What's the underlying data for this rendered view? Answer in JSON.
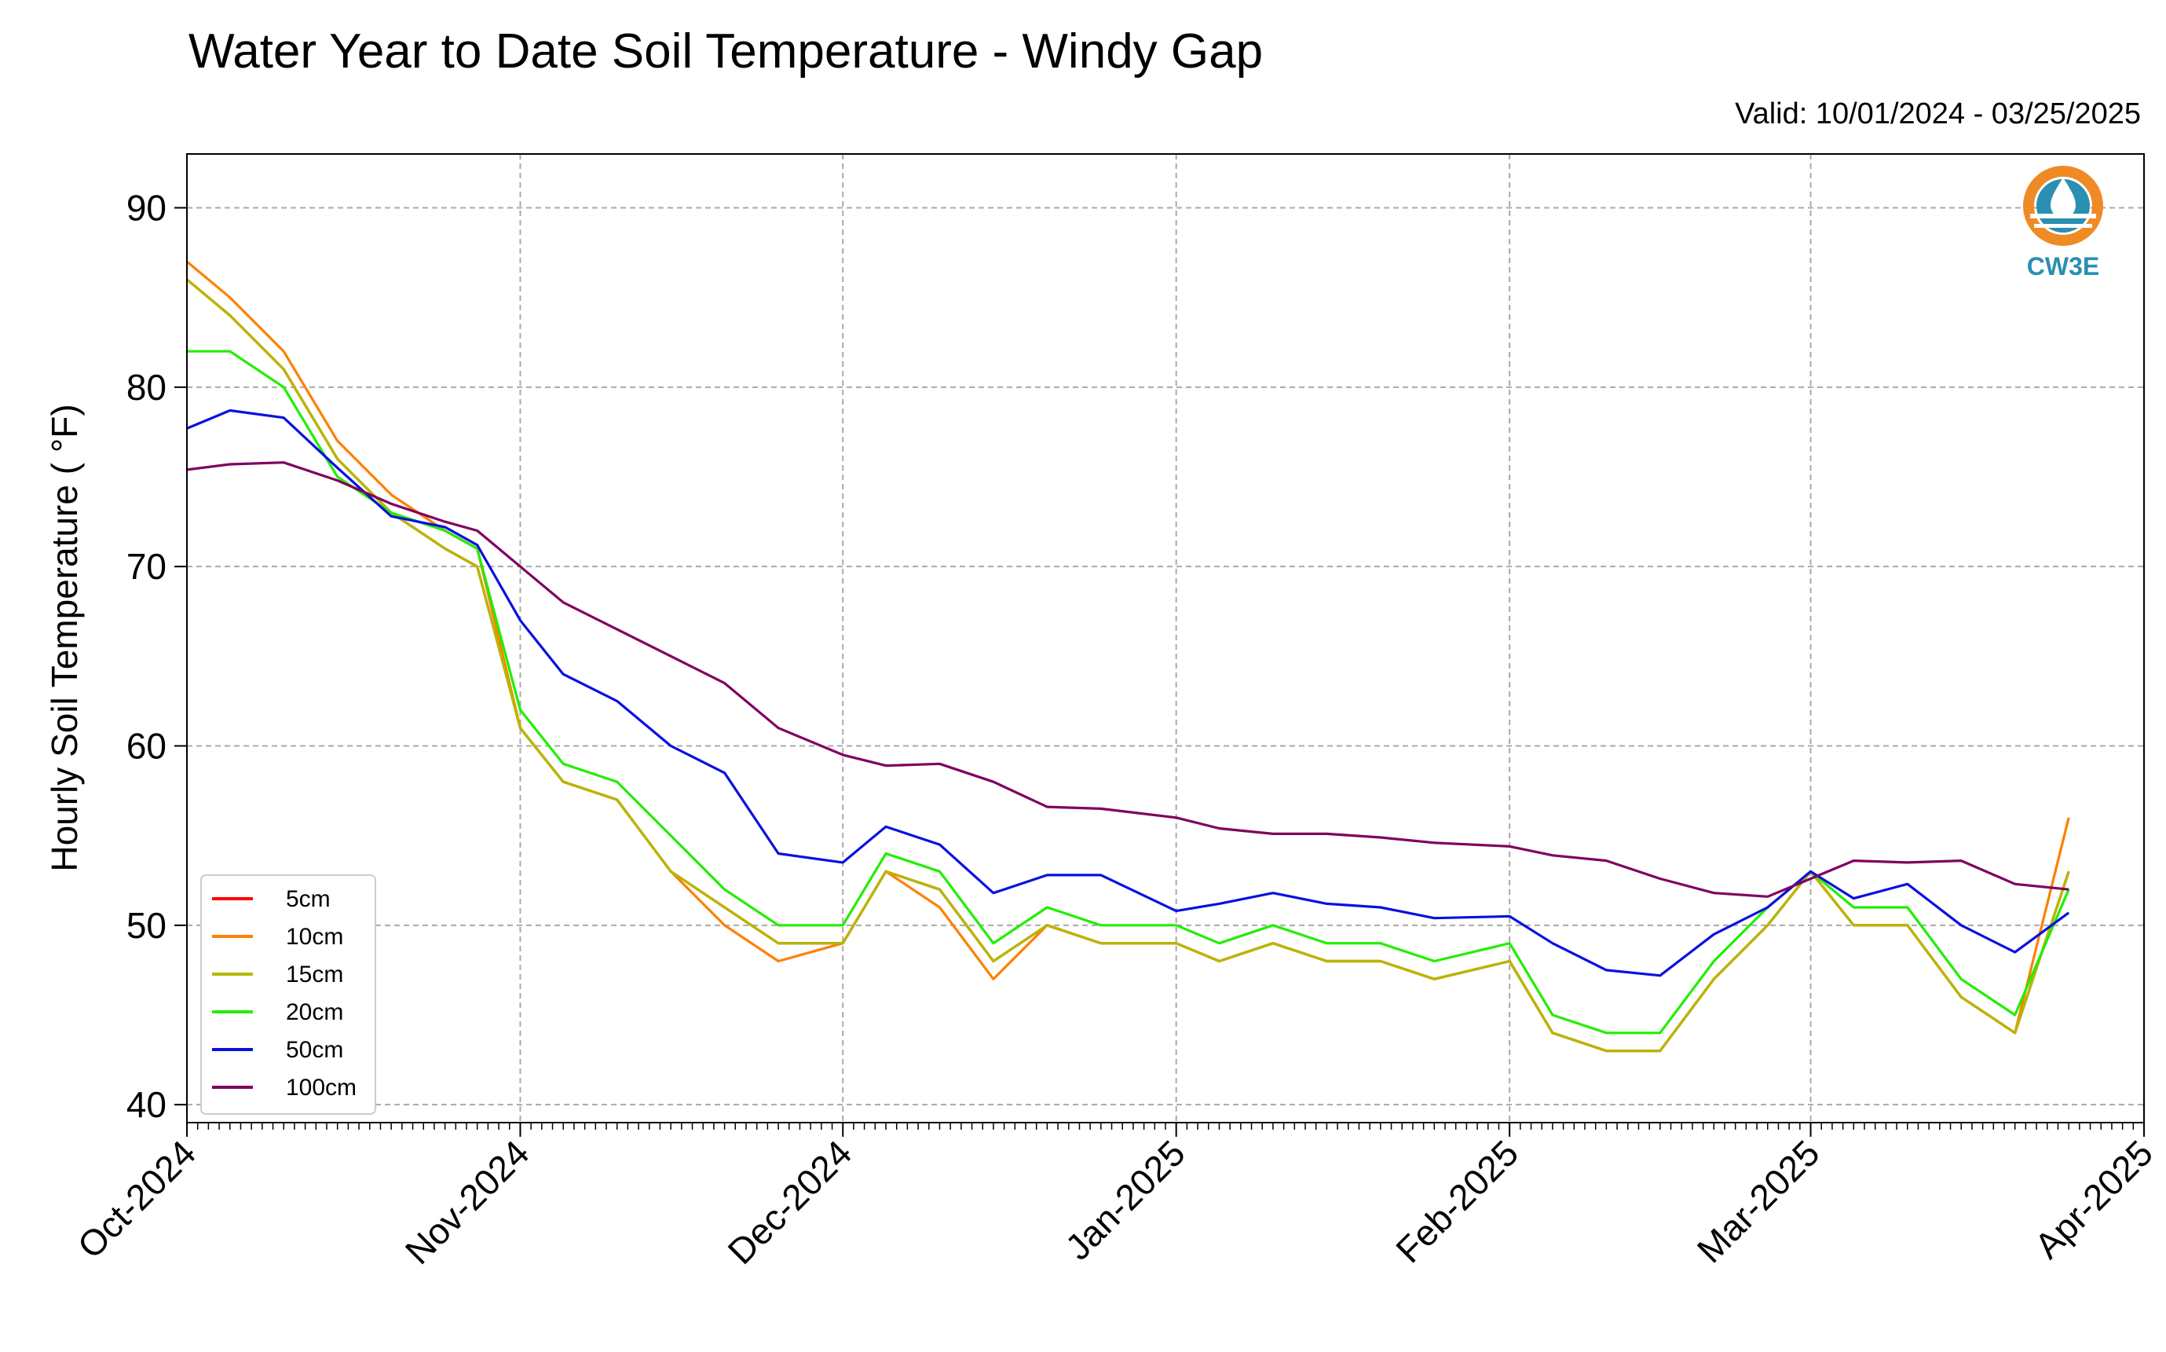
{
  "title": "Water Year to Date Soil Temperature - Windy Gap",
  "valid": "Valid: 10/01/2024 - 03/25/2025",
  "logo": {
    "text": "CW3E",
    "color": "#2a8fb0",
    "accent": "#f08a24"
  },
  "chart_data": {
    "type": "line",
    "title": "Water Year to Date Soil Temperature - Windy Gap",
    "xlabel": "",
    "ylabel": "Hourly Soil Temperature ( °F)",
    "xlim": [
      "2024-10-01",
      "2025-04-01"
    ],
    "ylim": [
      39,
      93
    ],
    "grid": true,
    "legend_position": "lower-left",
    "x_ticks": [
      "Oct-2024",
      "Nov-2024",
      "Dec-2024",
      "Jan-2025",
      "Feb-2025",
      "Mar-2025",
      "Apr-2025"
    ],
    "y_ticks": [
      40,
      50,
      60,
      70,
      80,
      90
    ],
    "x": [
      "2024-10-01",
      "2024-10-05",
      "2024-10-10",
      "2024-10-15",
      "2024-10-20",
      "2024-10-25",
      "2024-10-28",
      "2024-11-01",
      "2024-11-05",
      "2024-11-10",
      "2024-11-15",
      "2024-11-20",
      "2024-11-25",
      "2024-12-01",
      "2024-12-05",
      "2024-12-10",
      "2024-12-15",
      "2024-12-20",
      "2024-12-25",
      "2025-01-01",
      "2025-01-05",
      "2025-01-10",
      "2025-01-15",
      "2025-01-20",
      "2025-01-25",
      "2025-02-01",
      "2025-02-05",
      "2025-02-10",
      "2025-02-15",
      "2025-02-20",
      "2025-02-25",
      "2025-03-01",
      "2025-03-05",
      "2025-03-10",
      "2025-03-15",
      "2025-03-20",
      "2025-03-25"
    ],
    "series": [
      {
        "name": "5cm",
        "color": "#ff0000",
        "values": [
          86,
          84,
          81,
          76,
          73,
          71,
          70,
          61,
          58,
          57,
          53,
          51,
          49,
          49,
          53,
          52,
          48,
          50,
          49,
          49,
          48,
          49,
          48,
          48,
          47,
          48,
          44,
          43,
          43,
          47,
          50,
          53,
          50,
          50,
          46,
          44,
          53
        ]
      },
      {
        "name": "10cm",
        "color": "#ff8000",
        "values": [
          87,
          85,
          82,
          77,
          74,
          72,
          71,
          61,
          58,
          57,
          53,
          50,
          48,
          49,
          53,
          51,
          47,
          50,
          49,
          49,
          48,
          49,
          48,
          48,
          47,
          48,
          44,
          43,
          43,
          47,
          50,
          53,
          50,
          50,
          46,
          44,
          56
        ]
      },
      {
        "name": "15cm",
        "color": "#b5b800",
        "values": [
          86,
          84,
          81,
          76,
          73,
          71,
          70,
          61,
          58,
          57,
          53,
          51,
          49,
          49,
          53,
          52,
          48,
          50,
          49,
          49,
          48,
          49,
          48,
          48,
          47,
          48,
          44,
          43,
          43,
          47,
          50,
          53,
          50,
          50,
          46,
          44,
          53
        ]
      },
      {
        "name": "20cm",
        "color": "#22ee00",
        "values": [
          82,
          82,
          80,
          75,
          73,
          72,
          71,
          62,
          59,
          58,
          55,
          52,
          50,
          50,
          54,
          53,
          49,
          51,
          50,
          50,
          49,
          50,
          49,
          49,
          48,
          49,
          45,
          44,
          44,
          48,
          51,
          53,
          51,
          51,
          47,
          45,
          52
        ]
      },
      {
        "name": "50cm",
        "color": "#0a10e0",
        "values": [
          77.7,
          78.7,
          78.3,
          75.5,
          72.8,
          72.2,
          71.2,
          67,
          64,
          62.5,
          60,
          58.5,
          54,
          53.5,
          55.5,
          54.5,
          51.8,
          52.8,
          52.8,
          50.8,
          51.2,
          51.8,
          51.2,
          51,
          50.4,
          50.5,
          49,
          47.5,
          47.2,
          49.5,
          51,
          53,
          51.5,
          52.3,
          50,
          48.5,
          50.7
        ]
      },
      {
        "name": "100cm",
        "color": "#800060",
        "values": [
          75.4,
          75.7,
          75.8,
          74.8,
          73.5,
          72.5,
          72,
          70,
          68,
          66.5,
          65,
          63.5,
          61,
          59.5,
          58.9,
          59,
          58,
          56.6,
          56.5,
          56,
          55.4,
          55.1,
          55.1,
          54.9,
          54.6,
          54.4,
          53.9,
          53.6,
          52.6,
          51.8,
          51.6,
          52.6,
          53.6,
          53.5,
          53.6,
          52.3,
          52
        ]
      }
    ]
  }
}
